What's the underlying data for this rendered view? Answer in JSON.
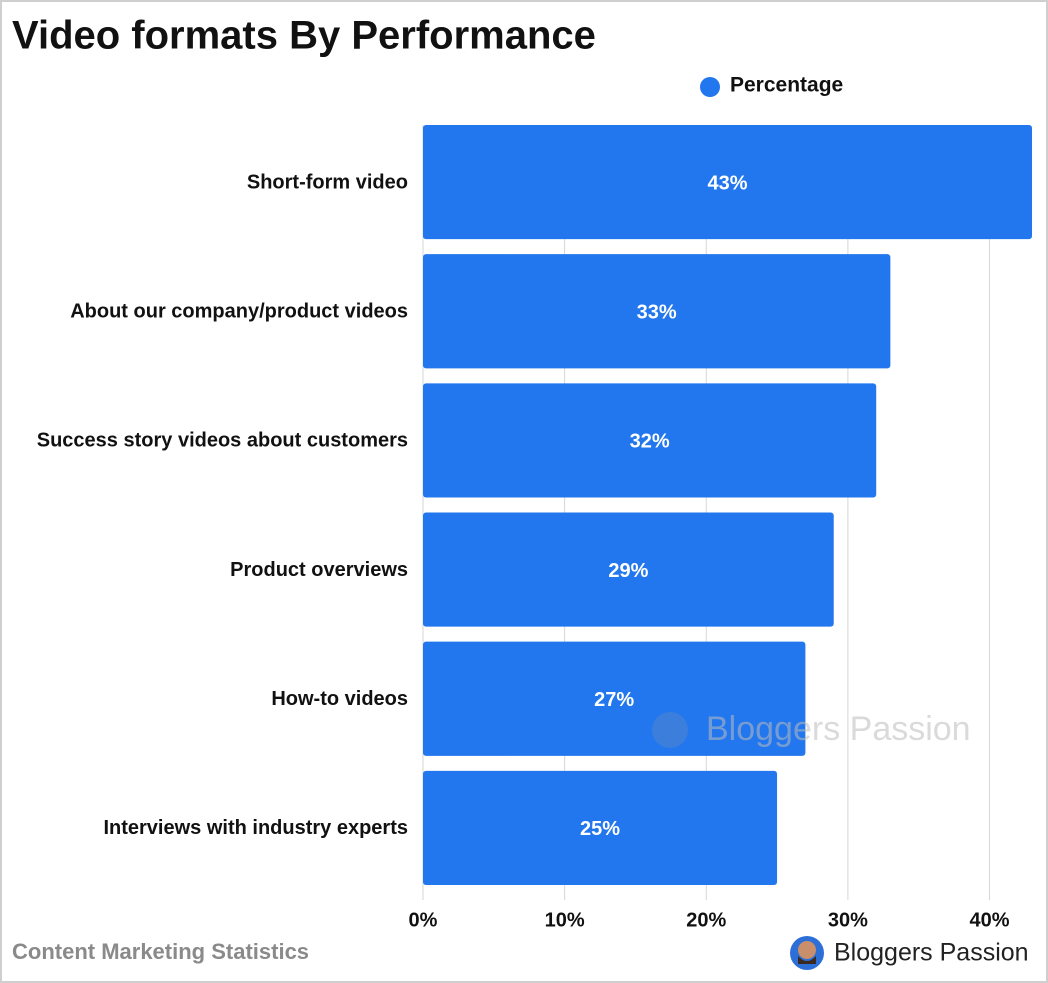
{
  "chart_data": {
    "type": "barh",
    "title": "Video formats By Performance",
    "categories": [
      "Short-form video",
      "About our company/product videos",
      "Success story videos about customers",
      "Product overviews",
      "How-to videos",
      "Interviews with industry experts"
    ],
    "series": [
      {
        "name": "Percentage",
        "color": "#2277ee",
        "values": [
          43,
          33,
          32,
          29,
          27,
          25
        ],
        "value_labels": [
          "43%",
          "33%",
          "32%",
          "29%",
          "27%",
          "25%"
        ]
      }
    ],
    "xlim": [
      0,
      43
    ],
    "xticks": [
      {
        "value": 0,
        "label": "0%"
      },
      {
        "value": 10,
        "label": "10%"
      },
      {
        "value": 20,
        "label": "20%"
      },
      {
        "value": 30,
        "label": "30%"
      },
      {
        "value": 40,
        "label": "40%"
      }
    ],
    "grid": true,
    "source": "Content Marketing Statistics",
    "brand": "Bloggers Passion",
    "watermark": "Bloggers Passion"
  }
}
